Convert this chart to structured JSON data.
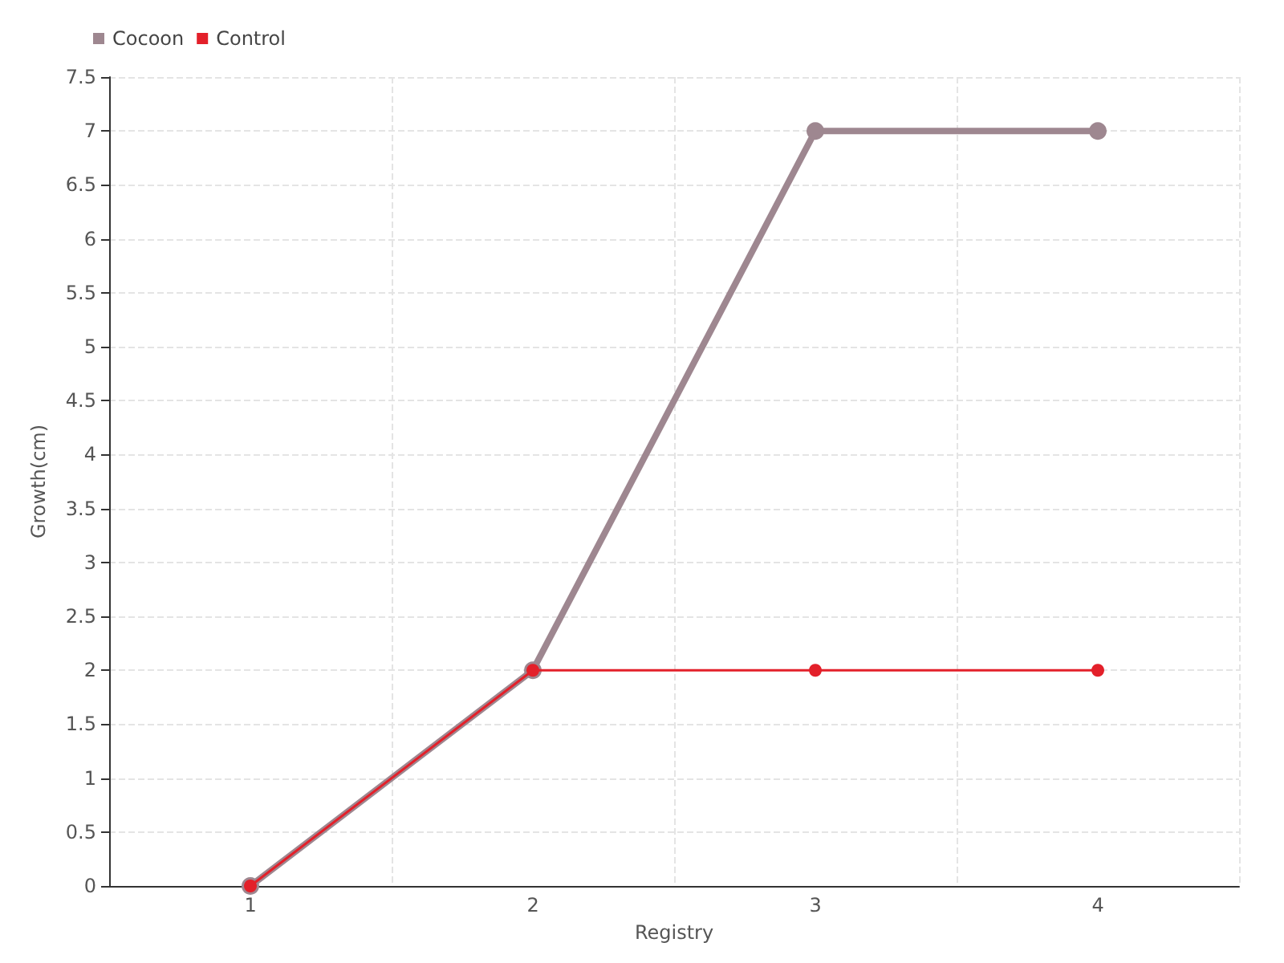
{
  "chart_data": {
    "type": "line",
    "xlabel": "Registry",
    "ylabel": "Growth(cm)",
    "categories": [
      "1",
      "2",
      "3",
      "4"
    ],
    "series": [
      {
        "name": "Cocoon",
        "color": "#9e8790",
        "values": [
          0,
          2,
          7,
          7
        ]
      },
      {
        "name": "Control",
        "color": "#e3202a",
        "values": [
          0,
          2,
          2,
          2
        ]
      }
    ],
    "ylim": [
      0,
      7.5
    ],
    "yticks": [
      0,
      0.5,
      1,
      1.5,
      2,
      2.5,
      3,
      3.5,
      4,
      4.5,
      5,
      5.5,
      6,
      6.5,
      7,
      7.5
    ],
    "grid": true,
    "legend": "top left",
    "marker": "circle",
    "line_style": "solid"
  }
}
